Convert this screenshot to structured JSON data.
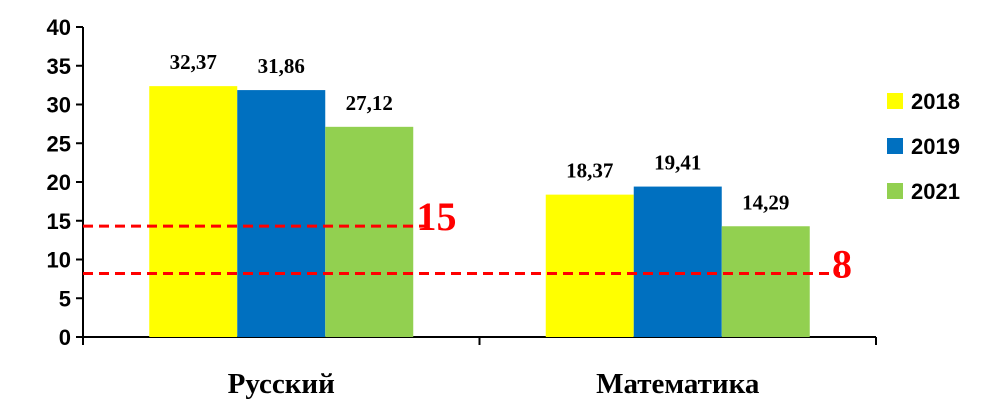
{
  "chart_data": {
    "type": "bar",
    "categories": [
      "Русский",
      "Математика"
    ],
    "series": [
      {
        "name": "2018",
        "color": "#FFFF00",
        "values": [
          32.37,
          18.37
        ],
        "labels": [
          "32,37",
          "18,37"
        ]
      },
      {
        "name": "2019",
        "color": "#0070C0",
        "values": [
          31.86,
          19.41
        ],
        "labels": [
          "31,86",
          "19,41"
        ]
      },
      {
        "name": "2021",
        "color": "#92D050",
        "values": [
          27.12,
          14.29
        ],
        "labels": [
          "27,12",
          "14,29"
        ]
      }
    ],
    "ylim": [
      0,
      40
    ],
    "yticks": [
      "0",
      "5",
      "10",
      "15",
      "20",
      "25",
      "30",
      "35",
      "40"
    ],
    "reference_lines": [
      {
        "label": "15",
        "value": 14.3,
        "category_span": "Русский",
        "color": "#FF0000"
      },
      {
        "label": "8",
        "value": 8.2,
        "category_span": "all",
        "color": "#FF0000"
      }
    ],
    "legend_position": "right",
    "grid": false,
    "title": "",
    "xlabel": "",
    "ylabel": ""
  }
}
